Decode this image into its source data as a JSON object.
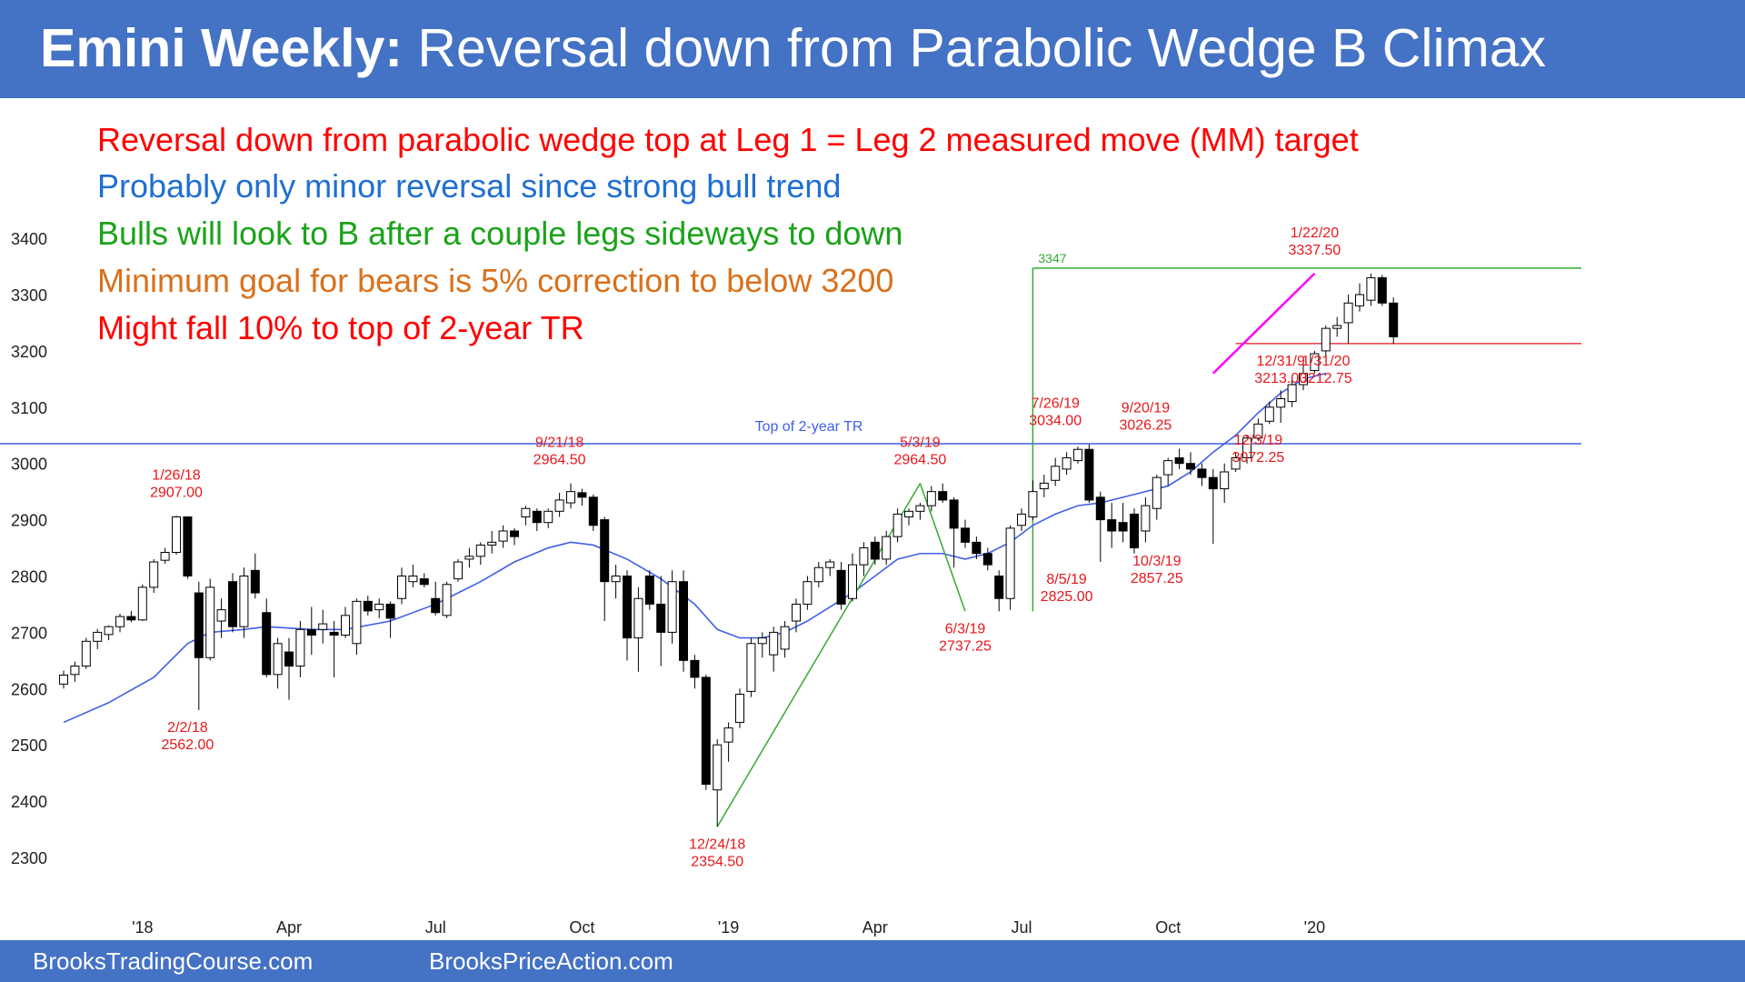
{
  "title": {
    "bold": "Emini Weekly:",
    "rest": " Reversal down from Parabolic Wedge B Climax"
  },
  "notes": [
    {
      "text": "Reversal down from parabolic wedge top at Leg 1 = Leg 2 measured move (MM) target",
      "color": "#ff0000"
    },
    {
      "text": "Probably only minor reversal since strong bull trend",
      "color": "#1f6fd1"
    },
    {
      "text": "Bulls will look to B after a couple legs sideways to down",
      "color": "#1aa31a"
    },
    {
      "text": "Minimum goal for bears is 5% correction to below 3200",
      "color": "#d9711c"
    },
    {
      "text": "Might fall 10% to top of 2-year TR",
      "color": "#ff0000"
    }
  ],
  "footer": {
    "left": "BrooksTradingCourse.com",
    "right": "BrooksPriceAction.com"
  },
  "colors": {
    "header": "#4472c4",
    "ma": "#3f5fe8",
    "tr_line": "#3f5fe8",
    "mm_line": "#33aa33",
    "wedge": "#ff00ff",
    "annotation": "#e8171b"
  },
  "chart_data": {
    "type": "candlestick",
    "instrument": "Emini",
    "timeframe": "weekly",
    "ylim": [
      2250,
      3450
    ],
    "y_ticks": [
      2300,
      2400,
      2500,
      2600,
      2700,
      2800,
      2900,
      3000,
      3100,
      3200,
      3300,
      3400
    ],
    "x_ticks": [
      "'18",
      "Apr",
      "Jul",
      "Oct",
      "'19",
      "Apr",
      "Jul",
      "Oct",
      "'20"
    ],
    "x_tick_weeks": [
      7,
      20,
      33,
      46,
      59,
      72,
      85,
      98,
      111
    ],
    "grid": false,
    "top_of_tr": {
      "value": 3035,
      "label": "Top of 2-year TR"
    },
    "mm_target": {
      "value": 3347,
      "label": "3347",
      "start_week": 86
    },
    "support_line": {
      "value": 3213,
      "start_week": 104
    },
    "annotations": [
      {
        "lines": [
          "1/26/18",
          "2907.00"
        ],
        "week": 10,
        "value": 2907,
        "place": "above"
      },
      {
        "lines": [
          "2/2/18",
          "2562.00"
        ],
        "week": 11,
        "value": 2562,
        "place": "below"
      },
      {
        "lines": [
          "9/21/18",
          "2964.50"
        ],
        "week": 44,
        "value": 2964.5,
        "place": "above"
      },
      {
        "lines": [
          "12/24/18",
          "2354.50"
        ],
        "week": 58,
        "value": 2354.5,
        "place": "below"
      },
      {
        "lines": [
          "5/3/19",
          "2964.50"
        ],
        "week": 76,
        "value": 2964.5,
        "place": "above"
      },
      {
        "lines": [
          "6/3/19",
          "2737.25"
        ],
        "week": 80,
        "value": 2737.25,
        "place": "below"
      },
      {
        "lines": [
          "7/26/19",
          "3034.00"
        ],
        "week": 88,
        "value": 3034,
        "place": "above"
      },
      {
        "lines": [
          "8/5/19",
          "2825.00"
        ],
        "week": 89,
        "value": 2825,
        "place": "below"
      },
      {
        "lines": [
          "9/20/19",
          "3026.25"
        ],
        "week": 96,
        "value": 3026.25,
        "place": "above"
      },
      {
        "lines": [
          "10/3/19",
          "2857.25"
        ],
        "week": 97,
        "value": 2857.25,
        "place": "below"
      },
      {
        "lines": [
          "12/3/19",
          "3072.25"
        ],
        "week": 106,
        "value": 3072.25,
        "place": "below"
      },
      {
        "lines": [
          "12/31/9",
          "3213.00"
        ],
        "week": 108,
        "value": 3213,
        "place": "below"
      },
      {
        "lines": [
          "1/22/20",
          "3337.50"
        ],
        "week": 111,
        "value": 3337.5,
        "place": "above"
      },
      {
        "lines": [
          "1/31/20",
          "3212.75"
        ],
        "week": 112,
        "value": 3212.75,
        "place": "below"
      }
    ],
    "bull_leg_lines": [
      {
        "from": [
          58,
          2354.5
        ],
        "to": [
          76,
          2964.5
        ]
      },
      {
        "from": [
          76,
          2964.5
        ],
        "to": [
          80,
          2737.25
        ]
      }
    ],
    "wedge_line": {
      "from": [
        102,
        3160
      ],
      "to": [
        111,
        3337.5
      ]
    },
    "candles": [
      {
        "o": 2608,
        "h": 2632,
        "l": 2600,
        "c": 2624
      },
      {
        "o": 2625,
        "h": 2648,
        "l": 2612,
        "c": 2640
      },
      {
        "o": 2640,
        "h": 2690,
        "l": 2635,
        "c": 2684
      },
      {
        "o": 2684,
        "h": 2706,
        "l": 2670,
        "c": 2700
      },
      {
        "o": 2696,
        "h": 2712,
        "l": 2686,
        "c": 2710
      },
      {
        "o": 2710,
        "h": 2733,
        "l": 2700,
        "c": 2728
      },
      {
        "o": 2728,
        "h": 2738,
        "l": 2718,
        "c": 2722
      },
      {
        "o": 2722,
        "h": 2785,
        "l": 2720,
        "c": 2780
      },
      {
        "o": 2780,
        "h": 2830,
        "l": 2770,
        "c": 2825
      },
      {
        "o": 2828,
        "h": 2850,
        "l": 2822,
        "c": 2842
      },
      {
        "o": 2842,
        "h": 2907,
        "l": 2838,
        "c": 2905
      },
      {
        "o": 2905,
        "h": 2906,
        "l": 2795,
        "c": 2800
      },
      {
        "o": 2770,
        "h": 2790,
        "l": 2562,
        "c": 2655
      },
      {
        "o": 2655,
        "h": 2795,
        "l": 2650,
        "c": 2780
      },
      {
        "o": 2720,
        "h": 2760,
        "l": 2690,
        "c": 2740
      },
      {
        "o": 2790,
        "h": 2805,
        "l": 2700,
        "c": 2710
      },
      {
        "o": 2710,
        "h": 2815,
        "l": 2690,
        "c": 2800
      },
      {
        "o": 2810,
        "h": 2840,
        "l": 2760,
        "c": 2770
      },
      {
        "o": 2735,
        "h": 2760,
        "l": 2620,
        "c": 2625
      },
      {
        "o": 2625,
        "h": 2690,
        "l": 2600,
        "c": 2680
      },
      {
        "o": 2665,
        "h": 2690,
        "l": 2580,
        "c": 2640
      },
      {
        "o": 2640,
        "h": 2720,
        "l": 2620,
        "c": 2705
      },
      {
        "o": 2705,
        "h": 2745,
        "l": 2660,
        "c": 2695
      },
      {
        "o": 2705,
        "h": 2740,
        "l": 2680,
        "c": 2715
      },
      {
        "o": 2700,
        "h": 2720,
        "l": 2620,
        "c": 2695
      },
      {
        "o": 2695,
        "h": 2745,
        "l": 2690,
        "c": 2730
      },
      {
        "o": 2680,
        "h": 2760,
        "l": 2660,
        "c": 2755
      },
      {
        "o": 2755,
        "h": 2765,
        "l": 2730,
        "c": 2738
      },
      {
        "o": 2740,
        "h": 2760,
        "l": 2725,
        "c": 2750
      },
      {
        "o": 2750,
        "h": 2755,
        "l": 2690,
        "c": 2725
      },
      {
        "o": 2760,
        "h": 2815,
        "l": 2750,
        "c": 2800
      },
      {
        "o": 2790,
        "h": 2820,
        "l": 2780,
        "c": 2800
      },
      {
        "o": 2795,
        "h": 2805,
        "l": 2780,
        "c": 2785
      },
      {
        "o": 2760,
        "h": 2790,
        "l": 2730,
        "c": 2735
      },
      {
        "o": 2730,
        "h": 2790,
        "l": 2725,
        "c": 2785
      },
      {
        "o": 2795,
        "h": 2830,
        "l": 2790,
        "c": 2825
      },
      {
        "o": 2830,
        "h": 2850,
        "l": 2815,
        "c": 2835
      },
      {
        "o": 2835,
        "h": 2860,
        "l": 2820,
        "c": 2855
      },
      {
        "o": 2855,
        "h": 2880,
        "l": 2840,
        "c": 2860
      },
      {
        "o": 2862,
        "h": 2890,
        "l": 2850,
        "c": 2880
      },
      {
        "o": 2880,
        "h": 2885,
        "l": 2855,
        "c": 2870
      },
      {
        "o": 2905,
        "h": 2925,
        "l": 2890,
        "c": 2920
      },
      {
        "o": 2915,
        "h": 2920,
        "l": 2880,
        "c": 2895
      },
      {
        "o": 2895,
        "h": 2920,
        "l": 2885,
        "c": 2915
      },
      {
        "o": 2915,
        "h": 2948,
        "l": 2905,
        "c": 2935
      },
      {
        "o": 2930,
        "h": 2964.5,
        "l": 2920,
        "c": 2950
      },
      {
        "o": 2948,
        "h": 2955,
        "l": 2925,
        "c": 2940
      },
      {
        "o": 2940,
        "h": 2945,
        "l": 2880,
        "c": 2890
      },
      {
        "o": 2900,
        "h": 2905,
        "l": 2720,
        "c": 2790
      },
      {
        "o": 2790,
        "h": 2820,
        "l": 2760,
        "c": 2800
      },
      {
        "o": 2800,
        "h": 2810,
        "l": 2650,
        "c": 2690
      },
      {
        "o": 2690,
        "h": 2780,
        "l": 2630,
        "c": 2760
      },
      {
        "o": 2800,
        "h": 2810,
        "l": 2740,
        "c": 2750
      },
      {
        "o": 2750,
        "h": 2800,
        "l": 2640,
        "c": 2700
      },
      {
        "o": 2700,
        "h": 2810,
        "l": 2680,
        "c": 2790
      },
      {
        "o": 2790,
        "h": 2810,
        "l": 2630,
        "c": 2650
      },
      {
        "o": 2650,
        "h": 2660,
        "l": 2600,
        "c": 2620
      },
      {
        "o": 2620,
        "h": 2625,
        "l": 2420,
        "c": 2430
      },
      {
        "o": 2420,
        "h": 2510,
        "l": 2354.5,
        "c": 2500
      },
      {
        "o": 2505,
        "h": 2540,
        "l": 2470,
        "c": 2530
      },
      {
        "o": 2540,
        "h": 2600,
        "l": 2530,
        "c": 2590
      },
      {
        "o": 2595,
        "h": 2690,
        "l": 2585,
        "c": 2680
      },
      {
        "o": 2680,
        "h": 2700,
        "l": 2655,
        "c": 2690
      },
      {
        "o": 2660,
        "h": 2710,
        "l": 2630,
        "c": 2700
      },
      {
        "o": 2670,
        "h": 2720,
        "l": 2655,
        "c": 2710
      },
      {
        "o": 2720,
        "h": 2760,
        "l": 2700,
        "c": 2750
      },
      {
        "o": 2750,
        "h": 2800,
        "l": 2740,
        "c": 2790
      },
      {
        "o": 2790,
        "h": 2825,
        "l": 2780,
        "c": 2815
      },
      {
        "o": 2815,
        "h": 2830,
        "l": 2800,
        "c": 2825
      },
      {
        "o": 2810,
        "h": 2825,
        "l": 2740,
        "c": 2750
      },
      {
        "o": 2760,
        "h": 2840,
        "l": 2755,
        "c": 2820
      },
      {
        "o": 2820,
        "h": 2860,
        "l": 2800,
        "c": 2850
      },
      {
        "o": 2860,
        "h": 2870,
        "l": 2820,
        "c": 2830
      },
      {
        "o": 2830,
        "h": 2880,
        "l": 2820,
        "c": 2870
      },
      {
        "o": 2870,
        "h": 2920,
        "l": 2860,
        "c": 2910
      },
      {
        "o": 2905,
        "h": 2920,
        "l": 2890,
        "c": 2915
      },
      {
        "o": 2915,
        "h": 2930,
        "l": 2900,
        "c": 2925
      },
      {
        "o": 2925,
        "h": 2960,
        "l": 2915,
        "c": 2950
      },
      {
        "o": 2950,
        "h": 2964.5,
        "l": 2930,
        "c": 2935
      },
      {
        "o": 2935,
        "h": 2940,
        "l": 2815,
        "c": 2885
      },
      {
        "o": 2885,
        "h": 2900,
        "l": 2850,
        "c": 2860
      },
      {
        "o": 2860,
        "h": 2870,
        "l": 2830,
        "c": 2840
      },
      {
        "o": 2840,
        "h": 2850,
        "l": 2810,
        "c": 2820
      },
      {
        "o": 2800,
        "h": 2810,
        "l": 2737.25,
        "c": 2760
      },
      {
        "o": 2760,
        "h": 2890,
        "l": 2740,
        "c": 2885
      },
      {
        "o": 2890,
        "h": 2920,
        "l": 2880,
        "c": 2910
      },
      {
        "o": 2905,
        "h": 2970,
        "l": 2900,
        "c": 2950
      },
      {
        "o": 2955,
        "h": 2980,
        "l": 2940,
        "c": 2965
      },
      {
        "o": 2970,
        "h": 3010,
        "l": 2960,
        "c": 2995
      },
      {
        "o": 2990,
        "h": 3020,
        "l": 2980,
        "c": 3010
      },
      {
        "o": 3005,
        "h": 3030,
        "l": 3000,
        "c": 3025
      },
      {
        "o": 3025,
        "h": 3034,
        "l": 2930,
        "c": 2935
      },
      {
        "o": 2940,
        "h": 2950,
        "l": 2825,
        "c": 2900
      },
      {
        "o": 2900,
        "h": 2930,
        "l": 2850,
        "c": 2880
      },
      {
        "o": 2895,
        "h": 2930,
        "l": 2860,
        "c": 2880
      },
      {
        "o": 2910,
        "h": 2920,
        "l": 2840,
        "c": 2850
      },
      {
        "o": 2880,
        "h": 2940,
        "l": 2860,
        "c": 2925
      },
      {
        "o": 2920,
        "h": 2980,
        "l": 2900,
        "c": 2975
      },
      {
        "o": 2980,
        "h": 3010,
        "l": 2960,
        "c": 3005
      },
      {
        "o": 3010,
        "h": 3026.25,
        "l": 2990,
        "c": 3000
      },
      {
        "o": 3000,
        "h": 3020,
        "l": 2980,
        "c": 2990
      },
      {
        "o": 2990,
        "h": 3000,
        "l": 2960,
        "c": 2975
      },
      {
        "o": 2975,
        "h": 2990,
        "l": 2857.25,
        "c": 2955
      },
      {
        "o": 2955,
        "h": 3000,
        "l": 2930,
        "c": 2985
      },
      {
        "o": 2990,
        "h": 3020,
        "l": 2985,
        "c": 3010
      },
      {
        "o": 3010,
        "h": 3050,
        "l": 3000,
        "c": 3045
      },
      {
        "o": 3045,
        "h": 3080,
        "l": 3040,
        "c": 3070
      },
      {
        "o": 3075,
        "h": 3110,
        "l": 3070,
        "c": 3100
      },
      {
        "o": 3100,
        "h": 3130,
        "l": 3072.25,
        "c": 3115
      },
      {
        "o": 3110,
        "h": 3150,
        "l": 3100,
        "c": 3140
      },
      {
        "o": 3140,
        "h": 3180,
        "l": 3130,
        "c": 3160
      },
      {
        "o": 3165,
        "h": 3200,
        "l": 3160,
        "c": 3195
      },
      {
        "o": 3200,
        "h": 3245,
        "l": 3190,
        "c": 3240
      },
      {
        "o": 3240,
        "h": 3260,
        "l": 3225,
        "c": 3245
      },
      {
        "o": 3250,
        "h": 3300,
        "l": 3213,
        "c": 3285
      },
      {
        "o": 3280,
        "h": 3320,
        "l": 3270,
        "c": 3300
      },
      {
        "o": 3290,
        "h": 3337.5,
        "l": 3280,
        "c": 3330
      },
      {
        "o": 3330,
        "h": 3335,
        "l": 3280,
        "c": 3285
      },
      {
        "o": 3285,
        "h": 3295,
        "l": 3212.75,
        "c": 3225
      }
    ],
    "ma20": [
      [
        0,
        2540
      ],
      [
        4,
        2575
      ],
      [
        8,
        2620
      ],
      [
        11,
        2680
      ],
      [
        13,
        2700
      ],
      [
        16,
        2705
      ],
      [
        18,
        2710
      ],
      [
        22,
        2705
      ],
      [
        25,
        2705
      ],
      [
        29,
        2720
      ],
      [
        33,
        2750
      ],
      [
        37,
        2790
      ],
      [
        40,
        2825
      ],
      [
        43,
        2850
      ],
      [
        45,
        2860
      ],
      [
        47,
        2855
      ],
      [
        50,
        2830
      ],
      [
        53,
        2795
      ],
      [
        56,
        2750
      ],
      [
        58,
        2705
      ],
      [
        60,
        2690
      ],
      [
        62,
        2690
      ],
      [
        64,
        2700
      ],
      [
        66,
        2720
      ],
      [
        68,
        2745
      ],
      [
        70,
        2770
      ],
      [
        72,
        2800
      ],
      [
        74,
        2830
      ],
      [
        76,
        2840
      ],
      [
        78,
        2840
      ],
      [
        80,
        2830
      ],
      [
        82,
        2840
      ],
      [
        84,
        2860
      ],
      [
        86,
        2890
      ],
      [
        88,
        2910
      ],
      [
        90,
        2925
      ],
      [
        92,
        2930
      ],
      [
        94,
        2940
      ],
      [
        96,
        2950
      ],
      [
        98,
        2960
      ],
      [
        100,
        2985
      ],
      [
        102,
        3020
      ],
      [
        104,
        3050
      ],
      [
        106,
        3090
      ],
      [
        108,
        3125
      ],
      [
        110,
        3150
      ],
      [
        112,
        3160
      ]
    ]
  }
}
